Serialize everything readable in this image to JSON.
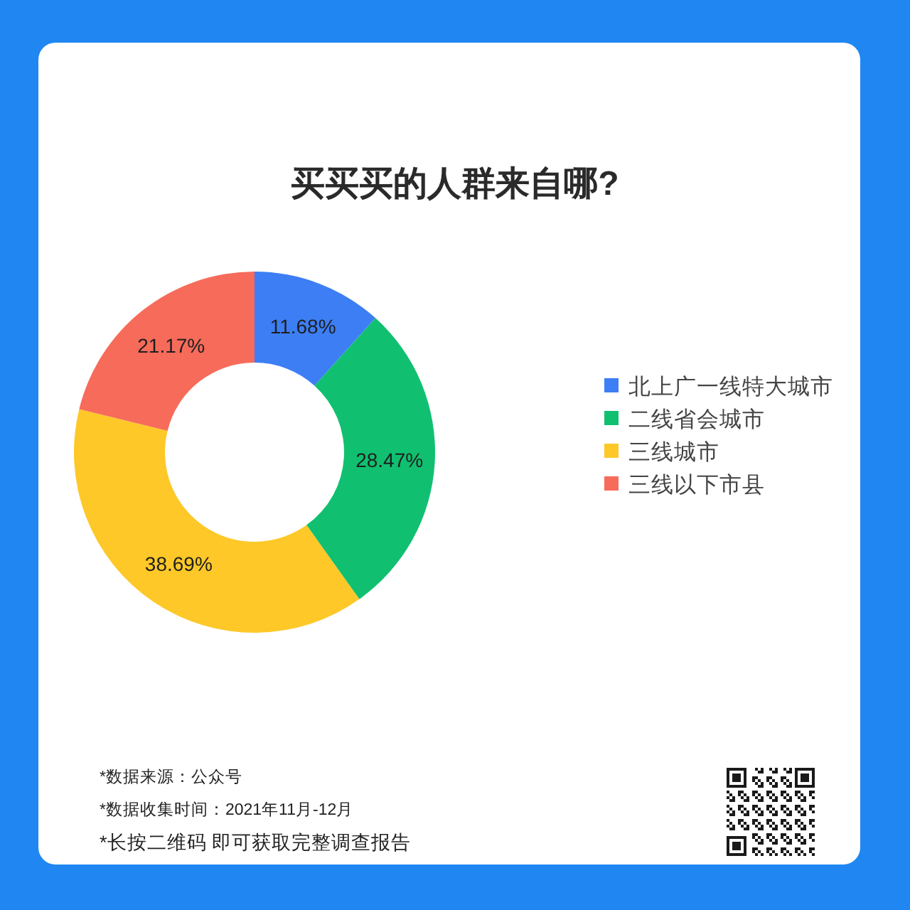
{
  "chart_data": {
    "type": "donut",
    "title": "买买买的人群来自哪?",
    "categories": [
      "北上广一线特大城市",
      "二线省会城市",
      "三线城市",
      "三线以下市县"
    ],
    "values": [
      11.68,
      28.47,
      38.69,
      21.17
    ],
    "value_labels": [
      "11.68%",
      "28.47%",
      "38.69%",
      "21.17%"
    ],
    "colors": [
      "#3d7ef5",
      "#10c070",
      "#fdc828",
      "#f76b5a"
    ],
    "legend": "right",
    "annotations": [
      "*数据来源：公众号",
      "*数据收集时间：2021年11月-12月",
      "*长按二维码 即可获取完整调查报告"
    ]
  }
}
